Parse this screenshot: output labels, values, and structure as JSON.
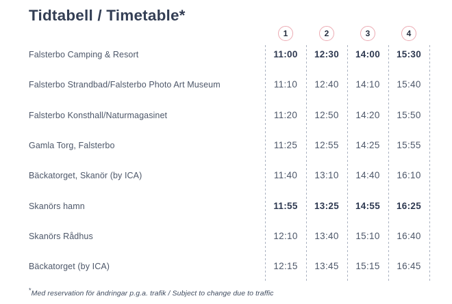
{
  "title": "Tidtabell / Timetable*",
  "columns": [
    "1",
    "2",
    "3",
    "4"
  ],
  "rows": [
    {
      "stop": "Falsterbo Camping & Resort",
      "times": [
        "11:00",
        "12:30",
        "14:00",
        "15:30"
      ],
      "emphasis": true
    },
    {
      "stop": "Falsterbo Strandbad/Falsterbo Photo Art Museum",
      "times": [
        "11:10",
        "12:40",
        "14:10",
        "15:40"
      ],
      "emphasis": false
    },
    {
      "stop": "Falsterbo Konsthall/Naturmagasinet",
      "times": [
        "11:20",
        "12:50",
        "14:20",
        "15:50"
      ],
      "emphasis": false
    },
    {
      "stop": "Gamla Torg, Falsterbo",
      "times": [
        "11:25",
        "12:55",
        "14:25",
        "15:55"
      ],
      "emphasis": false
    },
    {
      "stop": "Bäckatorget, Skanör (by ICA)",
      "times": [
        "11:40",
        "13:10",
        "14:40",
        "16:10"
      ],
      "emphasis": false
    },
    {
      "stop": "Skanörs hamn",
      "times": [
        "11:55",
        "13:25",
        "14:55",
        "16:25"
      ],
      "emphasis": true
    },
    {
      "stop": "Skanörs Rådhus",
      "times": [
        "12:10",
        "13:40",
        "15:10",
        "16:40"
      ],
      "emphasis": false
    },
    {
      "stop": "Bäckatorget (by ICA)",
      "times": [
        "12:15",
        "13:45",
        "15:15",
        "16:45"
      ],
      "emphasis": false
    }
  ],
  "footnote_mark": "*",
  "footnote_text": "Med reservation för ändringar p.g.a. trafik / Subject to change due to traffic",
  "colors": {
    "title_text": "#333e54",
    "body_text": "#4c5668",
    "emphasis_text": "#2d3850",
    "circle_outline": "#ecaab2",
    "grid_line": "#a9b1c0",
    "background": "#ffffff"
  }
}
